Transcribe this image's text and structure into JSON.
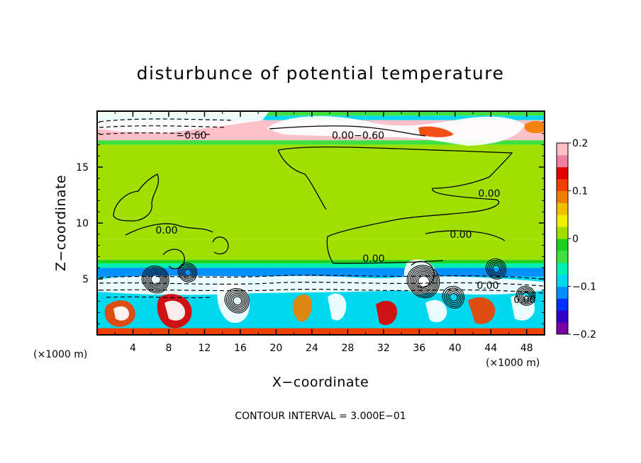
{
  "chart_data": {
    "type": "heatmap",
    "title": "disturbunce of potential temperature",
    "xlabel": "X−coordinate",
    "ylabel": "Z−coordinate",
    "x_unit_left": "(×1000 m)",
    "x_unit_right": "(×1000 m)",
    "xlim": [
      0,
      50
    ],
    "ylim": [
      0,
      20
    ],
    "xticks": [
      4,
      8,
      12,
      16,
      20,
      24,
      28,
      32,
      36,
      40,
      44,
      48
    ],
    "xtick_labels": [
      "4",
      "8",
      "12",
      "16",
      "20",
      "24",
      "28",
      "32",
      "36",
      "40",
      "44",
      "48"
    ],
    "yticks": [
      5,
      10,
      15
    ],
    "ytick_labels": [
      "5",
      "10",
      "15"
    ],
    "contour_interval_text": "CONTOUR INTERVAL = 3.000E−01",
    "colorbar": {
      "range": [
        -0.2,
        0.2
      ],
      "ticks": [
        0.2,
        0.1,
        0,
        -0.1,
        -0.2
      ],
      "tick_labels": [
        "0.2",
        "0.1",
        "0",
        "−0.1",
        "−0.2"
      ],
      "colors": [
        "#7a00a8",
        "#3000c8",
        "#0030ff",
        "#0090ff",
        "#00d8f0",
        "#00f0b0",
        "#40e040",
        "#20d020",
        "#a0e000",
        "#f0f000",
        "#f0c000",
        "#f08000",
        "#f04000",
        "#e00000",
        "#f080a0",
        "#ffc0c8"
      ]
    },
    "contour_labels": [
      {
        "text": "−0.60"
      },
      {
        "text": "0.00−0.60"
      },
      {
        "text": "0.00"
      },
      {
        "text": "0.00"
      },
      {
        "text": "0.00"
      },
      {
        "text": "0.00"
      },
      {
        "text": "0.00"
      },
      {
        "text": "0.00"
      }
    ],
    "bands": [
      {
        "z_from": 0.0,
        "z_to": 0.6,
        "value": 0.1
      },
      {
        "z_from": 0.6,
        "z_to": 5.2,
        "value": -0.1
      },
      {
        "z_from": 5.2,
        "z_to": 6.0,
        "value": -0.12
      },
      {
        "z_from": 6.0,
        "z_to": 6.4,
        "value": -0.06
      },
      {
        "z_from": 6.4,
        "z_to": 6.7,
        "value": -0.02
      },
      {
        "z_from": 6.7,
        "z_to": 8.5,
        "value": 0.0
      },
      {
        "z_from": 8.5,
        "z_to": 10.5,
        "value": 0.01
      },
      {
        "z_from": 10.5,
        "z_to": 17.0,
        "value": 0.0
      },
      {
        "z_from": 17.0,
        "z_to": 17.4,
        "value": -0.05
      },
      {
        "z_from": 17.4,
        "z_to": 19.2,
        "value": 0.2
      },
      {
        "z_from": 19.2,
        "z_to": 19.6,
        "value": -0.08
      },
      {
        "z_from": 19.6,
        "z_to": 20.0,
        "value": -0.04
      }
    ]
  }
}
